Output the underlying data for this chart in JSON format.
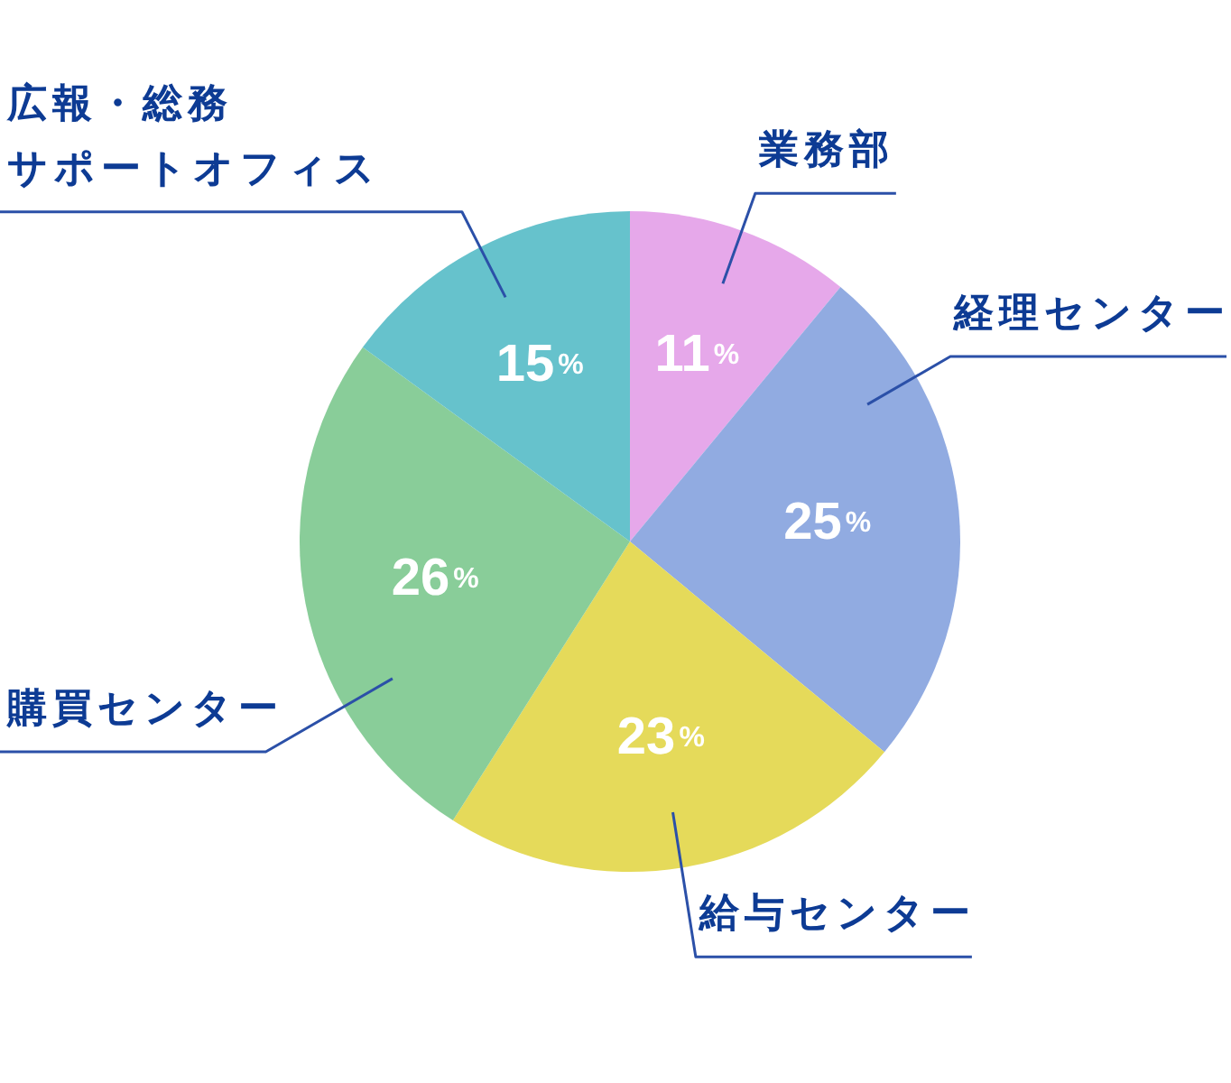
{
  "chart_data": {
    "type": "pie",
    "categories": [
      "業務部",
      "経理センター",
      "給与センター",
      "購買センター",
      "広報・総務サポートオフィス"
    ],
    "values": [
      11,
      25,
      23,
      26,
      15
    ],
    "colors": [
      "#e6a8ea",
      "#91abe1",
      "#e5da5a",
      "#89cd99",
      "#66c2cc"
    ],
    "value_labels": [
      "11%",
      "25%",
      "23%",
      "26%",
      "15%"
    ]
  }
}
